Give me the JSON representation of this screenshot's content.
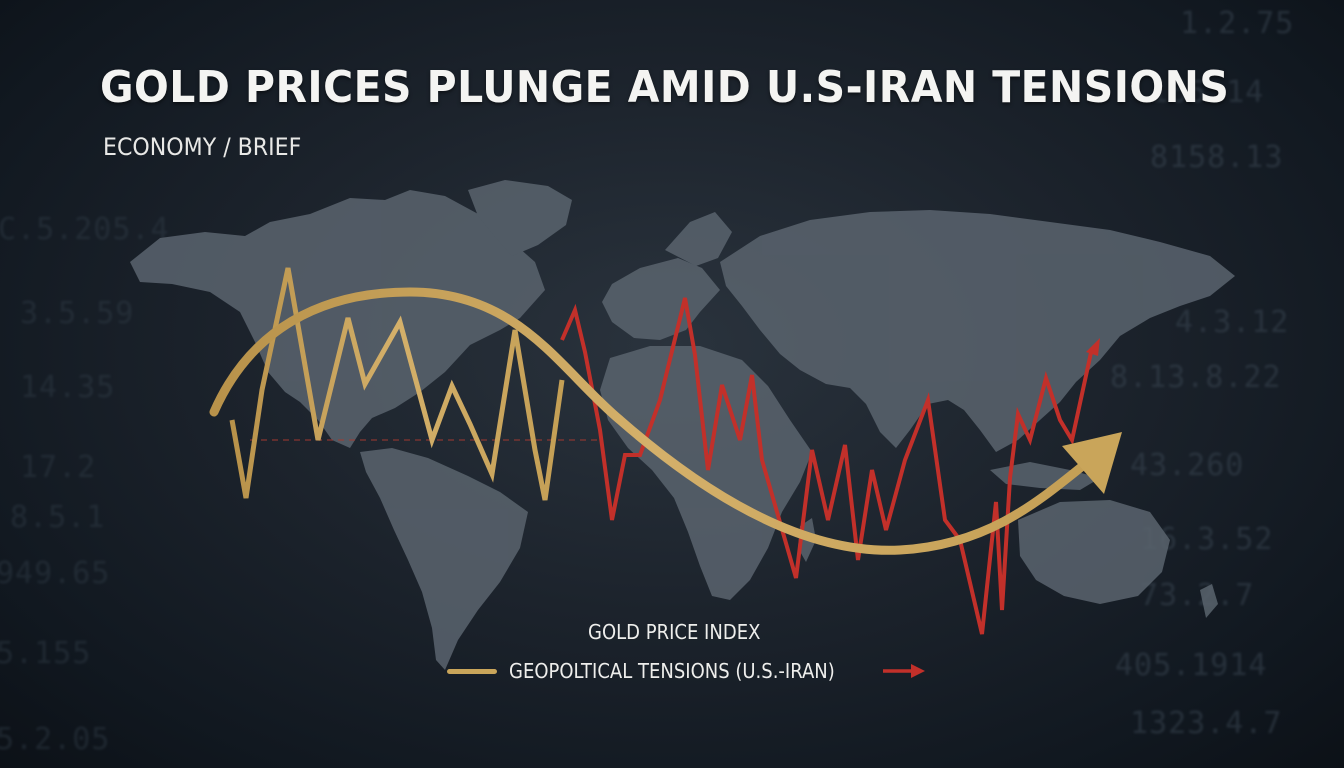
{
  "headline": "GOLD PRICES PLUNGE AMID U.S-IRAN TENSIONS",
  "kicker": "ECONOMY / BRIEF",
  "legend": {
    "title": "GOLD PRICE INDEX",
    "tensions_label": "GEOPOLTICAL TENSIONS (U.S.-IRAN)"
  },
  "colors": {
    "gold": "#c9a55a",
    "red": "#c2302a",
    "background": "#1c232c",
    "map": "#5c6670"
  },
  "background_numbers": {
    "right": [
      "1.2.75",
      "165.14",
      "8158.13",
      "4.3.12",
      "8.13.8.22",
      "43.260",
      "16.3.52",
      "73.2.7",
      "405.1914",
      "1323.4.7"
    ],
    "left": [
      "C.5.205.4",
      "3.5.59",
      "14.35",
      "17.2",
      "8.5.1",
      "949.65",
      "5.155",
      "5.2.05"
    ]
  }
}
